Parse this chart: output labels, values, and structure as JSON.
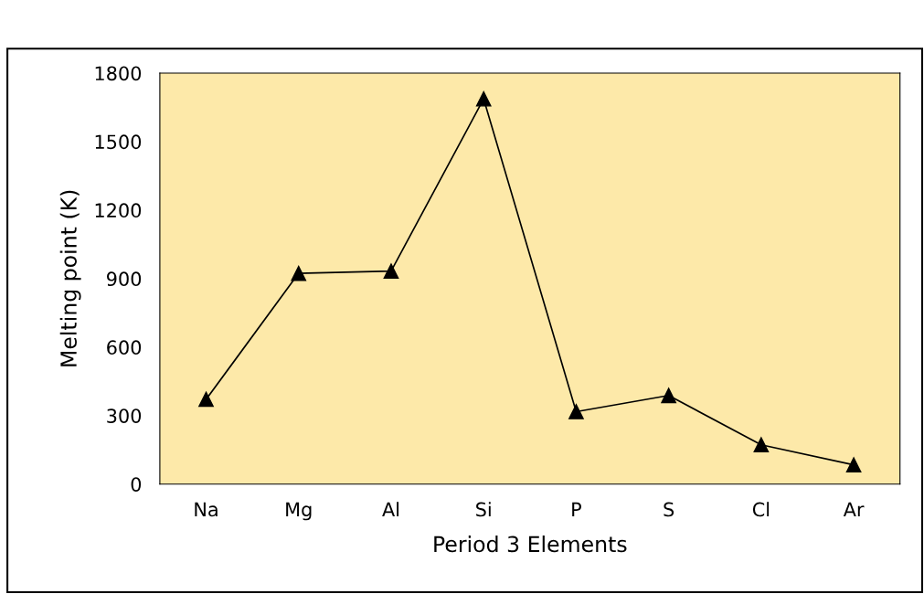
{
  "chart_data": {
    "type": "line",
    "xlabel": "Period 3 Elements",
    "ylabel": "Melting point (K)",
    "categories": [
      "Na",
      "Mg",
      "Al",
      "Si",
      "P",
      "S",
      "Cl",
      "Ar"
    ],
    "series": [
      {
        "color": "#000000",
        "values": [
          371,
          923,
          933,
          1687,
          317,
          388,
          172,
          84
        ]
      }
    ],
    "ylim": [
      0,
      1800
    ],
    "yticks": [
      0,
      300,
      600,
      900,
      1200,
      1500,
      1800
    ],
    "marker": "triangle",
    "line_style": "solid",
    "grid": false,
    "legend": false
  }
}
